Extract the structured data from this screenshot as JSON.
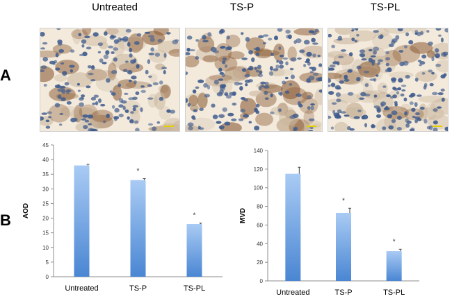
{
  "panels": {
    "a_label": "A",
    "b_label": "B",
    "columns": [
      "Untreated",
      "TS-P",
      "TS-PL"
    ]
  },
  "colors": {
    "bar_top": "#a9cbf4",
    "bar_bottom": "#4a86d3",
    "axis": "#8c8c8c",
    "stain_brown": "#8a5a33",
    "stain_blue": "#3f5b8c",
    "tissue_bg": "#f3eadc"
  },
  "chart_data": [
    {
      "type": "bar",
      "categories": [
        "Untreated",
        "TS-P",
        "TS-PL"
      ],
      "values": [
        38,
        33,
        18
      ],
      "errors": [
        0.4,
        0.5,
        0.3
      ],
      "significance": [
        "",
        "*",
        "*"
      ],
      "ylabel": "AOD",
      "ylim": [
        0,
        45
      ],
      "yticks": [
        0,
        5,
        10,
        15,
        20,
        25,
        30,
        35,
        40,
        45
      ],
      "grid": false
    },
    {
      "type": "bar",
      "categories": [
        "Untreated",
        "TS-P",
        "TS-PL"
      ],
      "values": [
        115,
        73,
        32
      ],
      "errors": [
        7,
        5,
        2
      ],
      "significance": [
        "",
        "*",
        "*"
      ],
      "ylabel": "MVD",
      "ylim": [
        0,
        140
      ],
      "yticks": [
        0,
        20,
        40,
        60,
        80,
        100,
        120,
        140
      ],
      "grid": false
    }
  ]
}
